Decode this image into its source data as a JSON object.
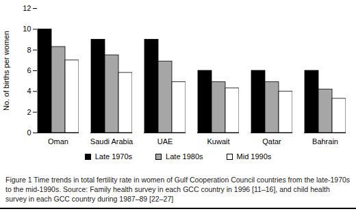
{
  "chart_data": {
    "type": "bar",
    "y_label": "No. of births per women",
    "caption": "Figure 1 Time trends in total fertility rate in women of Gulf Cooperation Council countries from the late-1970s to the mid-1990s. Source: Family health survey in each GCC country in 1996 [11–16], and child health survey in each GCC country during 1987–89 [22–27]",
    "categories": [
      "Oman",
      "Saudi Arabia",
      "UAE",
      "Kuwait",
      "Qatar",
      "Bahrain"
    ],
    "series": [
      {
        "name": "Late 1970s",
        "color": "#000000",
        "values": [
          10,
          9,
          9,
          6,
          6,
          6
        ]
      },
      {
        "name": "Late 1980s",
        "color": "#a6a6a6",
        "values": [
          8.3,
          7.5,
          6.9,
          4.9,
          4.9,
          4.2
        ]
      },
      {
        "name": "Mid 1990s",
        "color": "#ffffff",
        "values": [
          7.0,
          5.8,
          4.9,
          4.3,
          4.0,
          3.3
        ]
      }
    ],
    "ylim": [
      0,
      12
    ],
    "yticks": [
      0,
      2,
      4,
      6,
      8,
      10,
      12
    ],
    "grid": false,
    "legend": "bottom"
  }
}
